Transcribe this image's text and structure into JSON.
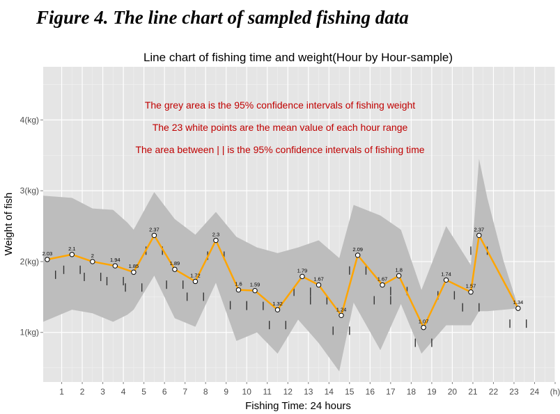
{
  "figure_caption": "Figure 4. The line chart of sampled fishing data",
  "chart_data": {
    "type": "line",
    "title": "Line chart of fishing time and weight(Hour by Hour-sample)",
    "xlabel": "Fishing Time: 24 hours",
    "ylabel": "Weight of fish",
    "x_ticks": [
      "1",
      "2",
      "3",
      "4",
      "5",
      "6",
      "7",
      "8",
      "9",
      "10",
      "11",
      "12",
      "13",
      "14",
      "15",
      "16",
      "17",
      "18",
      "19",
      "20",
      "21",
      "22",
      "23",
      "24",
      "(h)"
    ],
    "y_ticks": [
      "1(kg)",
      "2(kg)",
      "3(kg)",
      "4(kg)"
    ],
    "xlim": [
      0.1,
      25
    ],
    "ylim": [
      0.3,
      4.75
    ],
    "grid": true,
    "line_color": "#ffa500",
    "band_color": "#bdbdbd",
    "annotations": [
      "The grey area is the 95% confidence intervals of fishing weight",
      "The 23 white points are the mean value of each hour range",
      "The area between | | is the 95% confidence intervals of fishing time"
    ],
    "series": [
      {
        "x": [
          0.3,
          1.5,
          2.5,
          3.6,
          4.5,
          5.5,
          6.5,
          7.5,
          8.5,
          9.6,
          10.4,
          11.5,
          12.7,
          13.5,
          14.6,
          15.4,
          16.6,
          17.4,
          18.6,
          19.7,
          20.9,
          21.3,
          23.2
        ],
        "values": [
          2.03,
          2.1,
          2,
          1.94,
          1.85,
          2.37,
          1.89,
          1.72,
          2.3,
          1.6,
          1.59,
          1.32,
          1.79,
          1.67,
          1.24,
          2.09,
          1.67,
          1.8,
          1.07,
          1.74,
          1.57,
          2.37,
          1.34
        ],
        "labels": [
          "2.03",
          "2.1",
          "2",
          "1.94",
          "1.85",
          "2.37",
          "1.89",
          "1.72",
          "2.3",
          "1.6",
          "1.59",
          "1.32",
          "1.79",
          "1.67",
          "1.24",
          "2.09",
          "1.67",
          "1.8",
          "1.07",
          "1.74",
          "1.57",
          "2.37",
          "1.34"
        ],
        "time_ci": [
          [
            -0.1,
            0.7
          ],
          [
            1.1,
            1.9
          ],
          [
            2.1,
            2.9
          ],
          [
            3.2,
            4.0
          ],
          [
            4.1,
            4.9
          ],
          [
            5.1,
            5.9
          ],
          [
            6.1,
            6.9
          ],
          [
            7.1,
            7.9
          ],
          [
            8.1,
            8.9
          ],
          [
            9.2,
            10.0
          ],
          [
            10.0,
            10.8
          ],
          [
            11.1,
            11.9
          ],
          [
            12.3,
            13.1
          ],
          [
            13.1,
            13.9
          ],
          [
            14.2,
            15.0
          ],
          [
            15.0,
            15.8
          ],
          [
            16.2,
            17.0
          ],
          [
            17.0,
            17.8
          ],
          [
            18.2,
            19.0
          ],
          [
            19.3,
            20.1
          ],
          [
            20.5,
            21.3
          ],
          [
            20.9,
            21.7
          ],
          [
            22.8,
            23.6
          ]
        ]
      }
    ],
    "band_x": [
      0.1,
      1.5,
      2.5,
      3.5,
      4.2,
      4.5,
      5.5,
      6.5,
      7.5,
      8.5,
      9.5,
      10.5,
      11.5,
      12.5,
      13.5,
      14.5,
      15.2,
      16.5,
      17.5,
      18.5,
      19.7,
      20.9,
      21.3,
      21.7,
      22.5,
      23.2
    ],
    "band_upper": [
      2.93,
      2.9,
      2.75,
      2.73,
      2.55,
      2.45,
      2.98,
      2.6,
      2.38,
      2.7,
      2.35,
      2.2,
      2.12,
      2.2,
      2.3,
      2.05,
      2.8,
      2.65,
      2.45,
      1.6,
      2.5,
      1.95,
      3.45,
      2.9,
      2.0,
      1.36
    ],
    "band_lower": [
      1.15,
      1.32,
      1.27,
      1.15,
      1.25,
      1.32,
      1.8,
      1.2,
      1.08,
      1.7,
      0.88,
      1.0,
      0.7,
      1.18,
      0.85,
      0.45,
      1.42,
      0.75,
      1.4,
      0.7,
      1.1,
      1.1,
      1.3,
      1.3,
      1.32,
      1.34
    ]
  }
}
